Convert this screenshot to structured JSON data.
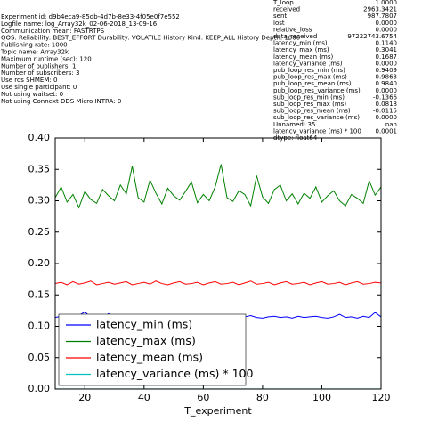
{
  "header_lines": [
    "Experiment id: d9b4eca9-85db-4d7b-8e33-4f05e0f7e552",
    "Logfile name: log_Array32k_02-06-2018_13-09-16",
    "Communication mean: FASTRTPS",
    "QOS: Reliability: BEST_EFFORT Durability: VOLATILE History Kind: KEEP_ALL History Depth: 1000",
    "Publishing rate: 1000",
    "Topic name: Array32k",
    "Maximum runtime (sec): 120",
    "Number of publishers: 1",
    "Number of subscribers: 3",
    "Use ros SHMEM: 0",
    "Use single participant: 0",
    "Not using waitset: 0",
    "Not using Connext DDS Micro INTRA: 0"
  ],
  "info_table": {
    "rows": [
      [
        "T_loop",
        "1.0000"
      ],
      [
        "received",
        "2963.3421"
      ],
      [
        "sent",
        "987.7807"
      ],
      [
        "lost",
        "0.0000"
      ],
      [
        "relative_loss",
        "0.0000"
      ],
      [
        "data_received",
        "97222743.6754"
      ],
      [
        "latency_min (ms)",
        "0.1140"
      ],
      [
        "latency_max (ms)",
        "0.3041"
      ],
      [
        "latency_mean (ms)",
        "0.1687"
      ],
      [
        "latency_variance (ms)",
        "0.0000"
      ],
      [
        "pub_loop_res_min (ms)",
        "0.9409"
      ],
      [
        "pub_loop_res_max (ms)",
        "0.9863"
      ],
      [
        "pub_loop_res_mean (ms)",
        "0.9840"
      ],
      [
        "pub_loop_res_variance (ms)",
        "0.0000"
      ],
      [
        "sub_loop_res_min (ms)",
        "-0.1366"
      ],
      [
        "sub_loop_res_max (ms)",
        "0.0818"
      ],
      [
        "sub_loop_res_mean (ms)",
        "-0.0115"
      ],
      [
        "sub_loop_res_variance (ms)",
        "0.0000"
      ],
      [
        "Unnamed: 35",
        "nan"
      ],
      [
        "latency_variance (ms) * 100",
        "0.0001"
      ]
    ],
    "footer": "dtype: float64"
  },
  "chart_data": {
    "type": "line",
    "x_label": "T_experiment",
    "x": [
      10,
      12,
      14,
      16,
      18,
      20,
      22,
      24,
      26,
      28,
      30,
      32,
      34,
      36,
      38,
      40,
      42,
      44,
      46,
      48,
      50,
      52,
      54,
      56,
      58,
      60,
      62,
      64,
      66,
      68,
      70,
      72,
      74,
      76,
      78,
      80,
      82,
      84,
      86,
      88,
      90,
      92,
      94,
      96,
      98,
      100,
      102,
      104,
      106,
      108,
      110,
      112,
      114,
      116,
      118,
      120
    ],
    "xlim": [
      10,
      120
    ],
    "xticks": [
      20,
      40,
      60,
      80,
      100,
      120
    ],
    "ylim": [
      0,
      0.4
    ],
    "yticks": [
      {
        "value": 0,
        "label": "0.00"
      },
      {
        "value": 0.05,
        "label": "0.05"
      },
      {
        "value": 0.1,
        "label": "0.10"
      },
      {
        "value": 0.15,
        "label": "0.15"
      },
      {
        "value": 0.2,
        "label": "0.20"
      },
      {
        "value": 0.25,
        "label": "0.25"
      },
      {
        "value": 0.3,
        "label": "0.30"
      },
      {
        "value": 0.35,
        "label": "0.35"
      },
      {
        "value": 0.4,
        "label": "0.40"
      }
    ],
    "legend": "lower left",
    "series": [
      {
        "name": "latency_min (ms)",
        "color": "#0000ff",
        "values": [
          0.114,
          0.116,
          0.113,
          0.115,
          0.117,
          0.123,
          0.114,
          0.115,
          0.113,
          0.12,
          0.115,
          0.114,
          0.116,
          0.113,
          0.115,
          0.117,
          0.114,
          0.115,
          0.113,
          0.116,
          0.114,
          0.115,
          0.117,
          0.114,
          0.113,
          0.115,
          0.116,
          0.114,
          0.115,
          0.113,
          0.116,
          0.114,
          0.115,
          0.117,
          0.114,
          0.113,
          0.115,
          0.116,
          0.114,
          0.115,
          0.113,
          0.116,
          0.114,
          0.115,
          0.116,
          0.114,
          0.113,
          0.115,
          0.119,
          0.114,
          0.115,
          0.113,
          0.116,
          0.114,
          0.122,
          0.115
        ]
      },
      {
        "name": "latency_max (ms)",
        "color": "#008000",
        "values": [
          0.305,
          0.322,
          0.298,
          0.31,
          0.289,
          0.315,
          0.302,
          0.296,
          0.318,
          0.308,
          0.3,
          0.325,
          0.311,
          0.355,
          0.305,
          0.298,
          0.333,
          0.312,
          0.295,
          0.32,
          0.308,
          0.301,
          0.315,
          0.33,
          0.297,
          0.31,
          0.3,
          0.322,
          0.358,
          0.305,
          0.299,
          0.316,
          0.31,
          0.292,
          0.34,
          0.306,
          0.296,
          0.318,
          0.325,
          0.3,
          0.311,
          0.295,
          0.312,
          0.304,
          0.322,
          0.298,
          0.308,
          0.316,
          0.3,
          0.292,
          0.31,
          0.304,
          0.296,
          0.332,
          0.309,
          0.322
        ]
      },
      {
        "name": "latency_mean (ms)",
        "color": "#ff0000",
        "values": [
          0.168,
          0.17,
          0.166,
          0.171,
          0.167,
          0.169,
          0.172,
          0.166,
          0.168,
          0.17,
          0.167,
          0.169,
          0.171,
          0.166,
          0.168,
          0.17,
          0.167,
          0.172,
          0.168,
          0.166,
          0.169,
          0.171,
          0.167,
          0.168,
          0.17,
          0.166,
          0.169,
          0.171,
          0.167,
          0.168,
          0.17,
          0.166,
          0.169,
          0.172,
          0.167,
          0.168,
          0.17,
          0.166,
          0.169,
          0.171,
          0.167,
          0.168,
          0.17,
          0.166,
          0.169,
          0.171,
          0.167,
          0.168,
          0.17,
          0.166,
          0.169,
          0.171,
          0.167,
          0.168,
          0.17,
          0.169
        ]
      },
      {
        "name": "latency_variance (ms) * 100",
        "color": "#00bfbf",
        "values": [
          0.0001,
          0.0001,
          0.0001,
          0.0001,
          0.0001,
          0.0001,
          0.0001,
          0.0001,
          0.0001,
          0.0001,
          0.0001,
          0.0001,
          0.0001,
          0.0001,
          0.0001,
          0.0001,
          0.0001,
          0.0001,
          0.0001,
          0.0001,
          0.0001,
          0.0001,
          0.0001,
          0.0001,
          0.0001,
          0.0001,
          0.0001,
          0.0001,
          0.0001,
          0.0001,
          0.0001,
          0.0001,
          0.0001,
          0.0001,
          0.0001,
          0.0001,
          0.0001,
          0.0001,
          0.0001,
          0.0001,
          0.0001,
          0.0001,
          0.0001,
          0.0001,
          0.0001,
          0.0001,
          0.0001,
          0.0001,
          0.0001,
          0.0001,
          0.0001,
          0.0001,
          0.0001,
          0.0001,
          0.0001,
          0.0001
        ]
      }
    ]
  }
}
